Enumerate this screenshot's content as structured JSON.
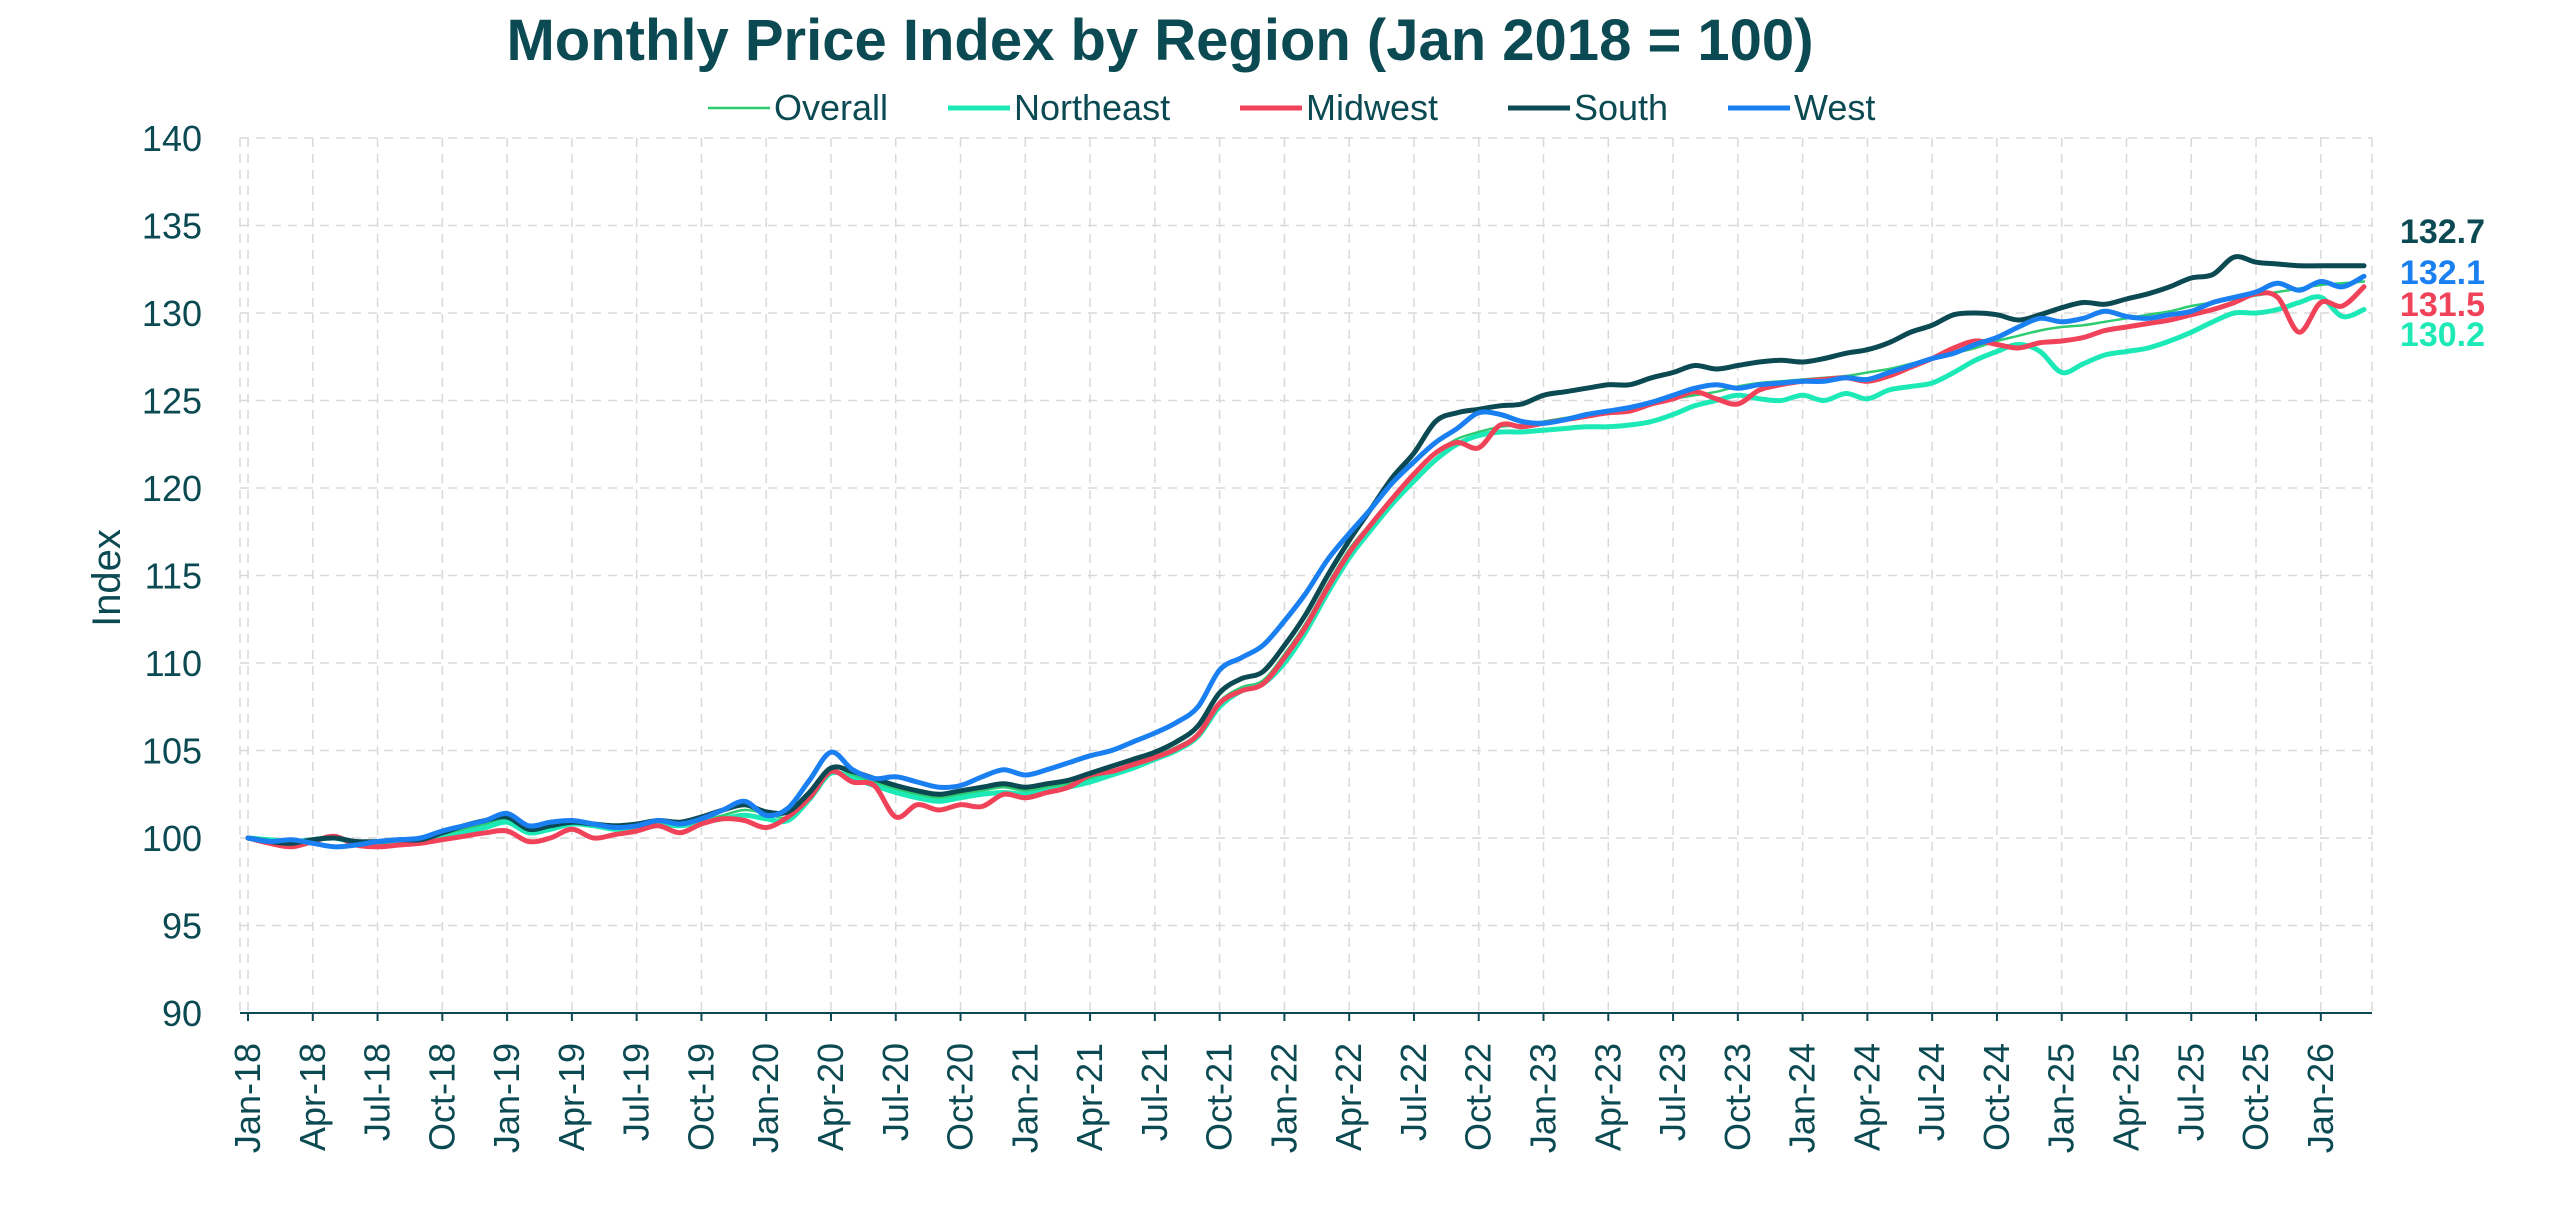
{
  "chart_data": {
    "type": "line",
    "title": "Monthly Price Index by Region (Jan 2018 = 100)",
    "ylabel": "Index",
    "xlabel": "",
    "ylim": [
      90,
      140
    ],
    "yticks": [
      90,
      95,
      100,
      105,
      110,
      115,
      120,
      125,
      130,
      135,
      140
    ],
    "grid": true,
    "legend": "top",
    "x_tick_labels": [
      "Jan-18",
      "Apr-18",
      "Jul-18",
      "Oct-18",
      "Jan-19",
      "Apr-19",
      "Jul-19",
      "Oct-19",
      "Jan-20",
      "Apr-20",
      "Jul-20",
      "Oct-20",
      "Jan-21",
      "Apr-21",
      "Jul-21",
      "Oct-21",
      "Jan-22",
      "Apr-22",
      "Jul-22",
      "Oct-22",
      "Jan-23",
      "Apr-23",
      "Jul-23",
      "Oct-23",
      "Jan-24",
      "Apr-24",
      "Jul-24",
      "Oct-24",
      "Jan-25",
      "Apr-25",
      "Jul-25",
      "Oct-25",
      "Jan-26"
    ],
    "x_tick_months": [
      0,
      3,
      6,
      9,
      12,
      15,
      18,
      21,
      24,
      27,
      30,
      33,
      36,
      39,
      42,
      45,
      48,
      51,
      54,
      57,
      60,
      63,
      66,
      69,
      72,
      75,
      78,
      81,
      84,
      87,
      90,
      93,
      96
    ],
    "x_start": "Jan-18",
    "series": [
      {
        "name": "Overall",
        "color": "#2ecc71",
        "width": 2.5,
        "values": [
          100.0,
          99.8,
          99.6,
          99.9,
          100.1,
          99.8,
          99.6,
          99.7,
          99.9,
          100.2,
          100.5,
          100.8,
          101.0,
          100.4,
          100.6,
          100.9,
          100.8,
          100.6,
          100.7,
          100.9,
          100.8,
          101.0,
          101.3,
          101.6,
          101.4,
          101.2,
          102.4,
          104.0,
          103.6,
          103.2,
          102.8,
          102.5,
          102.3,
          102.5,
          102.7,
          102.9,
          102.7,
          102.9,
          103.1,
          103.4,
          103.8,
          104.2,
          104.7,
          105.2,
          106.0,
          107.8,
          108.6,
          109.0,
          110.5,
          112.3,
          114.5,
          116.5,
          118.0,
          119.5,
          120.8,
          122.0,
          122.8,
          123.2,
          123.5,
          123.6,
          123.8,
          124.0,
          124.2,
          124.4,
          124.6,
          124.9,
          125.1,
          125.3,
          125.5,
          125.8,
          126.0,
          126.1,
          126.2,
          126.3,
          126.4,
          126.6,
          126.8,
          127.1,
          127.4,
          127.7,
          128.0,
          128.4,
          128.7,
          129.0,
          129.2,
          129.3,
          129.5,
          129.7,
          129.9,
          130.1,
          130.4,
          130.6,
          130.8,
          131.0,
          131.2,
          131.4,
          131.6,
          131.7,
          131.8
        ]
      },
      {
        "name": "Northeast",
        "color": "#1de9b6",
        "width": 5,
        "values": [
          100.0,
          99.9,
          99.8,
          99.9,
          100.0,
          99.7,
          99.6,
          99.7,
          99.8,
          100.0,
          100.3,
          100.6,
          100.9,
          100.3,
          100.5,
          100.8,
          100.7,
          100.5,
          100.6,
          100.8,
          100.7,
          100.9,
          101.1,
          101.3,
          101.1,
          101.0,
          102.2,
          103.7,
          103.4,
          103.0,
          102.6,
          102.3,
          102.1,
          102.3,
          102.5,
          102.6,
          102.5,
          102.7,
          102.9,
          103.2,
          103.6,
          104.0,
          104.5,
          105.0,
          105.8,
          107.5,
          108.4,
          108.8,
          110.0,
          111.8,
          114.0,
          116.0,
          117.6,
          119.1,
          120.4,
          121.6,
          122.5,
          123.0,
          123.2,
          123.2,
          123.3,
          123.4,
          123.5,
          123.5,
          123.6,
          123.8,
          124.2,
          124.7,
          125.0,
          125.3,
          125.1,
          125.0,
          125.3,
          125.0,
          125.4,
          125.1,
          125.6,
          125.8,
          126.0,
          126.6,
          127.3,
          127.8,
          128.2,
          127.8,
          126.6,
          127.1,
          127.6,
          127.8,
          128.0,
          128.4,
          128.9,
          129.5,
          130.0,
          130.0,
          130.2,
          130.6,
          130.9,
          129.8,
          130.2
        ]
      },
      {
        "name": "Midwest",
        "color": "#f0435a",
        "width": 5,
        "values": [
          100.0,
          99.7,
          99.5,
          99.8,
          100.1,
          99.6,
          99.5,
          99.6,
          99.7,
          99.9,
          100.1,
          100.3,
          100.4,
          99.8,
          100.0,
          100.5,
          100.0,
          100.2,
          100.4,
          100.7,
          100.3,
          100.8,
          101.1,
          101.0,
          100.6,
          101.2,
          102.3,
          103.8,
          103.2,
          103.0,
          101.2,
          101.9,
          101.6,
          101.9,
          101.8,
          102.5,
          102.3,
          102.6,
          102.9,
          103.6,
          103.8,
          104.2,
          104.6,
          105.1,
          105.9,
          107.7,
          108.4,
          108.8,
          110.3,
          112.1,
          114.3,
          116.3,
          117.9,
          119.4,
          120.8,
          122.0,
          122.6,
          122.3,
          123.6,
          123.5,
          123.7,
          123.9,
          124.1,
          124.3,
          124.4,
          124.8,
          125.1,
          125.5,
          125.1,
          124.8,
          125.6,
          125.9,
          126.1,
          126.2,
          126.3,
          126.1,
          126.4,
          126.9,
          127.4,
          128.0,
          128.4,
          128.2,
          128.0,
          128.3,
          128.4,
          128.6,
          129.0,
          129.2,
          129.4,
          129.6,
          129.9,
          130.2,
          130.6,
          131.1,
          130.9,
          128.9,
          130.6,
          130.4,
          131.5
        ]
      },
      {
        "name": "South",
        "color": "#0b4a52",
        "width": 5,
        "values": [
          100.0,
          99.8,
          99.7,
          99.9,
          100.0,
          99.8,
          99.8,
          99.9,
          99.9,
          100.3,
          100.7,
          101.0,
          101.2,
          100.5,
          100.7,
          100.9,
          100.8,
          100.7,
          100.8,
          101.0,
          100.9,
          101.2,
          101.6,
          101.9,
          101.5,
          101.5,
          102.6,
          104.0,
          103.8,
          103.4,
          103.0,
          102.7,
          102.5,
          102.7,
          102.9,
          103.1,
          102.9,
          103.1,
          103.3,
          103.7,
          104.1,
          104.5,
          104.9,
          105.5,
          106.4,
          108.3,
          109.1,
          109.5,
          111.0,
          112.8,
          115.0,
          117.0,
          118.8,
          120.6,
          122.0,
          123.8,
          124.3,
          124.5,
          124.7,
          124.8,
          125.3,
          125.5,
          125.7,
          125.9,
          125.9,
          126.3,
          126.6,
          127.0,
          126.8,
          127.0,
          127.2,
          127.3,
          127.2,
          127.4,
          127.7,
          127.9,
          128.3,
          128.9,
          129.3,
          129.9,
          130.0,
          129.9,
          129.6,
          129.9,
          130.3,
          130.6,
          130.5,
          130.8,
          131.1,
          131.5,
          132.0,
          132.2,
          133.2,
          132.9,
          132.8,
          132.7,
          132.7,
          132.7,
          132.7
        ]
      },
      {
        "name": "West",
        "color": "#1a7ff0",
        "width": 5,
        "values": [
          100.0,
          99.8,
          99.9,
          99.7,
          99.5,
          99.6,
          99.8,
          99.9,
          100.0,
          100.4,
          100.7,
          101.0,
          101.4,
          100.7,
          100.9,
          101.0,
          100.8,
          100.6,
          100.7,
          101.0,
          100.8,
          101.1,
          101.6,
          102.1,
          101.3,
          101.7,
          103.3,
          104.9,
          103.9,
          103.4,
          103.5,
          103.2,
          102.9,
          103.0,
          103.5,
          103.9,
          103.6,
          103.9,
          104.3,
          104.7,
          105.0,
          105.5,
          106.0,
          106.6,
          107.5,
          109.6,
          110.3,
          111.0,
          112.4,
          114.0,
          115.9,
          117.4,
          118.8,
          120.3,
          121.5,
          122.6,
          123.4,
          124.3,
          124.2,
          123.8,
          123.7,
          123.9,
          124.2,
          124.4,
          124.6,
          124.9,
          125.3,
          125.7,
          125.9,
          125.7,
          125.9,
          126.0,
          126.1,
          126.1,
          126.3,
          126.2,
          126.6,
          127.0,
          127.4,
          127.7,
          128.2,
          128.6,
          129.2,
          129.7,
          129.5,
          129.7,
          130.1,
          129.8,
          129.7,
          129.9,
          130.1,
          130.6,
          130.9,
          131.2,
          131.7,
          131.3,
          131.8,
          131.5,
          132.1
        ]
      }
    ],
    "end_labels": [
      {
        "text": "132.7",
        "color": "#0b4a52",
        "value": 132.7
      },
      {
        "text": "132.1",
        "color": "#1a7ff0",
        "value": 132.1
      },
      {
        "text": "131.5",
        "color": "#f0435a",
        "value": 131.5
      },
      {
        "text": "130.2",
        "color": "#1de9b6",
        "value": 130.2
      }
    ]
  }
}
